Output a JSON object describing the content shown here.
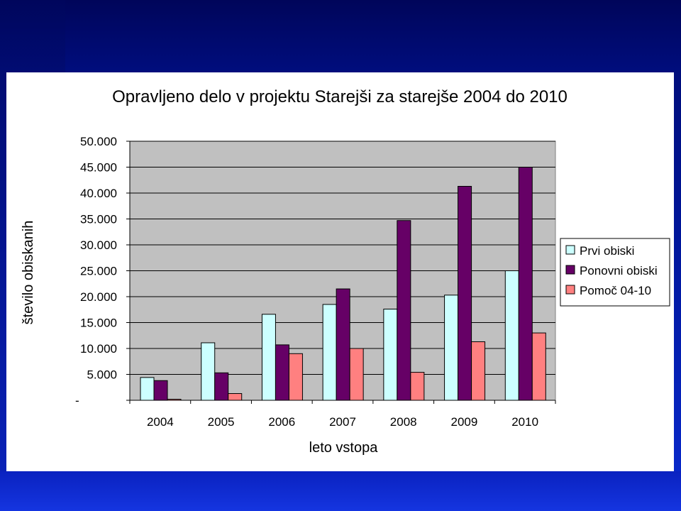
{
  "chart_data": {
    "type": "bar",
    "title": "Opravljeno delo v projektu Starejši za starejše 2004 do 2010",
    "xlabel": "leto vstopa",
    "ylabel": "število obiskanih",
    "categories": [
      "2004",
      "2005",
      "2006",
      "2007",
      "2008",
      "2009",
      "2010"
    ],
    "ylim": [
      0,
      50000
    ],
    "y_ticks": [
      0,
      5000,
      10000,
      15000,
      20000,
      25000,
      30000,
      35000,
      40000,
      45000,
      50000
    ],
    "y_tick_labels": [
      "-",
      "5.000",
      "10.000",
      "15.000",
      "20.000",
      "25.000",
      "30.000",
      "35.000",
      "40.000",
      "45.000",
      "50.000"
    ],
    "grid": true,
    "legend_position": "right",
    "series": [
      {
        "name": "Prvi obiski",
        "color": "#ccffff",
        "values": [
          4400,
          11100,
          16600,
          18500,
          17600,
          20300,
          25000
        ]
      },
      {
        "name": "Ponovni obiski",
        "color": "#660066",
        "values": [
          3800,
          5300,
          10700,
          21500,
          34700,
          41300,
          45000
        ]
      },
      {
        "name": "Pomoč 04-10",
        "color": "#ff8080",
        "values": [
          200,
          1300,
          9000,
          10000,
          5400,
          11300,
          13000
        ]
      }
    ],
    "plot_background": "#c0c0c0"
  }
}
